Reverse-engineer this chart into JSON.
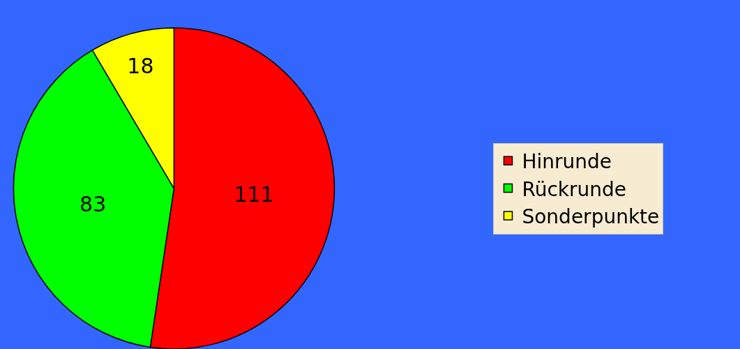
{
  "chart_data": {
    "type": "pie",
    "categories": [
      "Hinrunde",
      "Rückrunde",
      "Sonderpunkte"
    ],
    "values": [
      111,
      83,
      18
    ],
    "colors": [
      "#ff0000",
      "#00ff00",
      "#ffff00"
    ],
    "data_labels": true,
    "legend": "right"
  }
}
